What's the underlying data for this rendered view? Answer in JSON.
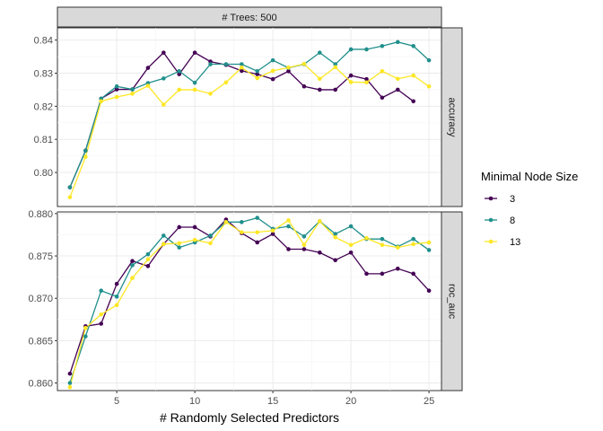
{
  "chart_data": {
    "type": "line",
    "top_strip": "# Trees: 500",
    "xlabel": "# Randomly Selected Predictors",
    "x": [
      2,
      3,
      4,
      5,
      6,
      7,
      8,
      9,
      10,
      11,
      12,
      13,
      14,
      15,
      16,
      17,
      18,
      19,
      20,
      21,
      22,
      23,
      24,
      25
    ],
    "xlim": [
      1.2,
      25.8
    ],
    "xticks": [
      5,
      10,
      15,
      20,
      25
    ],
    "grid": true,
    "legend": {
      "title": "Minimal Node Size",
      "position": "right",
      "entries": [
        "3",
        "8",
        "13"
      ]
    },
    "series_colors": [
      "#440154",
      "#21908C",
      "#FDE725"
    ],
    "panels": [
      {
        "metric": "accuracy",
        "ylim": [
          0.7897,
          0.8437
        ],
        "yticks": [
          0.8,
          0.81,
          0.82,
          0.83,
          0.84
        ],
        "ytick_labels": [
          "0.80",
          "0.81",
          "0.82",
          "0.83",
          "0.84"
        ],
        "series": [
          {
            "name": "3",
            "values": [
              0.7955,
              0.8066,
              0.8223,
              0.8251,
              0.8251,
              0.8316,
              0.8362,
              0.8297,
              0.8362,
              0.8335,
              0.8325,
              0.8307,
              0.8297,
              0.8282,
              0.8306,
              0.826,
              0.825,
              0.825,
              0.8293,
              0.8282,
              0.8226,
              0.825,
              0.8215,
              null
            ]
          },
          {
            "name": "8",
            "values": [
              0.7955,
              0.8066,
              0.8223,
              0.826,
              0.8251,
              0.827,
              0.8284,
              0.8306,
              0.8271,
              0.8327,
              0.8327,
              0.8327,
              0.8306,
              0.8339,
              0.8316,
              0.8327,
              0.8362,
              0.8327,
              0.8372,
              0.8372,
              0.8382,
              0.8394,
              0.8382,
              0.8339
            ]
          },
          {
            "name": "13",
            "values": [
              0.7925,
              0.8047,
              0.8215,
              0.8228,
              0.8238,
              0.8262,
              0.8205,
              0.825,
              0.825,
              0.8238,
              0.8272,
              0.8317,
              0.8285,
              0.8307,
              0.8317,
              0.8328,
              0.8283,
              0.8318,
              0.8273,
              0.8272,
              0.8306,
              0.8283,
              0.8293,
              0.826
            ]
          }
        ]
      },
      {
        "metric": "roc_auc",
        "ylim": [
          0.8591,
          0.8802
        ],
        "yticks": [
          0.86,
          0.865,
          0.87,
          0.875,
          0.88
        ],
        "ytick_labels": [
          "0.860",
          "0.865",
          "0.870",
          "0.875",
          "0.880"
        ],
        "series": [
          {
            "name": "3",
            "values": [
              0.8611,
              0.8667,
              0.867,
              0.8717,
              0.8744,
              0.8738,
              0.8764,
              0.8784,
              0.8784,
              0.8773,
              0.8793,
              0.8777,
              0.8766,
              0.8776,
              0.8758,
              0.8758,
              0.8754,
              0.8745,
              0.8754,
              0.8729,
              0.8729,
              0.8735,
              0.8729,
              0.8709
            ]
          },
          {
            "name": "8",
            "values": [
              0.86,
              0.8655,
              0.8709,
              0.8702,
              0.8739,
              0.8752,
              0.8774,
              0.876,
              0.8766,
              0.8774,
              0.879,
              0.879,
              0.8795,
              0.8782,
              0.8785,
              0.8773,
              0.8791,
              0.8776,
              0.8785,
              0.877,
              0.877,
              0.8761,
              0.877,
              0.8757
            ]
          },
          {
            "name": "13",
            "values": [
              0.8595,
              0.8665,
              0.8681,
              0.8692,
              0.8724,
              0.8746,
              0.8764,
              0.8765,
              0.8769,
              0.8765,
              0.879,
              0.8778,
              0.8778,
              0.878,
              0.8792,
              0.8763,
              0.8791,
              0.8772,
              0.8763,
              0.8771,
              0.8763,
              0.876,
              0.8764,
              0.8766
            ]
          }
        ]
      }
    ]
  }
}
